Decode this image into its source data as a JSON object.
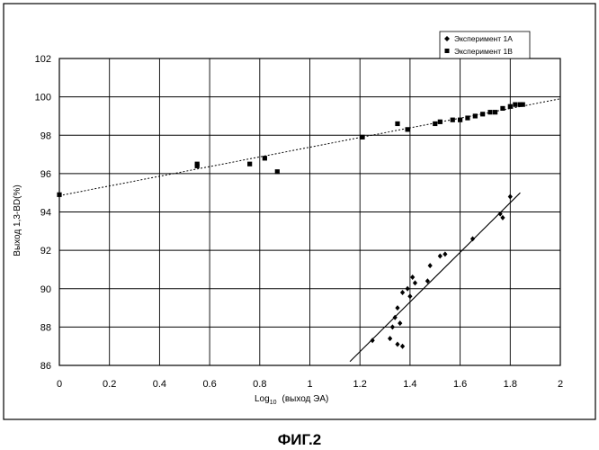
{
  "chart_data": {
    "type": "scatter",
    "title": "",
    "xlabel": "Log10 (выход ЭА)",
    "xlabel_main": "Log",
    "xlabel_sub": "10",
    "xlabel_rest": "(выход ЭА)",
    "ylabel": "Выход 1,3-BD(%)",
    "xlim": [
      0,
      2
    ],
    "ylim": [
      86,
      102
    ],
    "xticks": [
      "0",
      "0.2",
      "0.4",
      "0.6",
      "0.8",
      "1",
      "1.2",
      "1.4",
      "1.6",
      "1.8",
      "2"
    ],
    "yticks": [
      "86",
      "88",
      "90",
      "92",
      "94",
      "96",
      "98",
      "100",
      "102"
    ],
    "grid": true,
    "legend_placement": "top-right",
    "series": [
      {
        "name": "Эксперимент 1А",
        "marker": "diamond",
        "points": [
          [
            1.25,
            87.3
          ],
          [
            1.32,
            87.4
          ],
          [
            1.33,
            88.0
          ],
          [
            1.34,
            88.5
          ],
          [
            1.35,
            87.1
          ],
          [
            1.35,
            89.0
          ],
          [
            1.36,
            88.2
          ],
          [
            1.37,
            87.0
          ],
          [
            1.37,
            89.8
          ],
          [
            1.39,
            90.0
          ],
          [
            1.4,
            89.6
          ],
          [
            1.41,
            90.6
          ],
          [
            1.42,
            90.3
          ],
          [
            1.47,
            90.4
          ],
          [
            1.48,
            91.2
          ],
          [
            1.52,
            91.7
          ],
          [
            1.54,
            91.8
          ],
          [
            1.65,
            92.6
          ],
          [
            1.76,
            93.9
          ],
          [
            1.77,
            93.7
          ],
          [
            1.8,
            94.8
          ]
        ],
        "trend": [
          [
            1.16,
            86.2
          ],
          [
            1.84,
            95.0
          ]
        ]
      },
      {
        "name": "Эксперимент 1В",
        "marker": "square",
        "points": [
          [
            0.0,
            94.9
          ],
          [
            0.55,
            96.4
          ],
          [
            0.55,
            96.5
          ],
          [
            0.76,
            96.5
          ],
          [
            0.82,
            96.8
          ],
          [
            0.87,
            96.1
          ],
          [
            1.21,
            97.9
          ],
          [
            1.35,
            98.6
          ],
          [
            1.39,
            98.3
          ],
          [
            1.5,
            98.6
          ],
          [
            1.52,
            98.7
          ],
          [
            1.57,
            98.8
          ],
          [
            1.6,
            98.8
          ],
          [
            1.63,
            98.9
          ],
          [
            1.66,
            99.0
          ],
          [
            1.69,
            99.1
          ],
          [
            1.72,
            99.2
          ],
          [
            1.74,
            99.2
          ],
          [
            1.77,
            99.4
          ],
          [
            1.8,
            99.5
          ],
          [
            1.82,
            99.6
          ],
          [
            1.84,
            99.6
          ],
          [
            1.85,
            99.6
          ]
        ],
        "trend": [
          [
            0.0,
            94.85
          ],
          [
            2.0,
            99.9
          ]
        ]
      }
    ]
  },
  "figure_caption": "ФИГ.2"
}
